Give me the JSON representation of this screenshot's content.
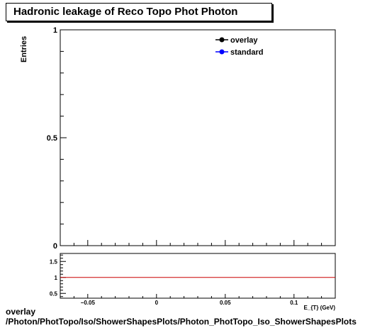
{
  "title": "Hadronic leakage of Reco Topo Phot Photon",
  "colors": {
    "overlay": "#000000",
    "standard": "#0000ff",
    "ratio_line": "#cc0000"
  },
  "footer": {
    "line1": "overlay",
    "line2": "/Photon/PhotTopo/Iso/ShowerShapesPlots/Photon_PhotTopo_Iso_ShowerShapesPlots"
  },
  "chart_data": [
    {
      "type": "line",
      "ylabel": "Entries",
      "ylim": [
        0,
        1
      ],
      "yticks": [
        {
          "value": 0,
          "label": "0"
        },
        {
          "value": 0.5,
          "label": "0.5"
        },
        {
          "value": 1,
          "label": "1"
        }
      ],
      "xlim": [
        -0.07,
        0.13
      ],
      "legend_position": "top-right",
      "series": [
        {
          "name": "overlay",
          "values": []
        },
        {
          "name": "standard",
          "values": []
        }
      ]
    },
    {
      "type": "line",
      "xlabel": "E_{T} (GeV)",
      "xlim": [
        -0.07,
        0.13
      ],
      "ylim": [
        0.35,
        1.75
      ],
      "xticks": [
        {
          "value": -0.05,
          "label": "−0.05"
        },
        {
          "value": 0,
          "label": "0"
        },
        {
          "value": 0.05,
          "label": "0.05"
        },
        {
          "value": 0.1,
          "label": "0.1"
        }
      ],
      "yticks": [
        {
          "value": 0.5,
          "label": "0.5"
        },
        {
          "value": 1,
          "label": "1"
        },
        {
          "value": 1.5,
          "label": "1.5"
        }
      ],
      "reference_line": 1
    }
  ]
}
